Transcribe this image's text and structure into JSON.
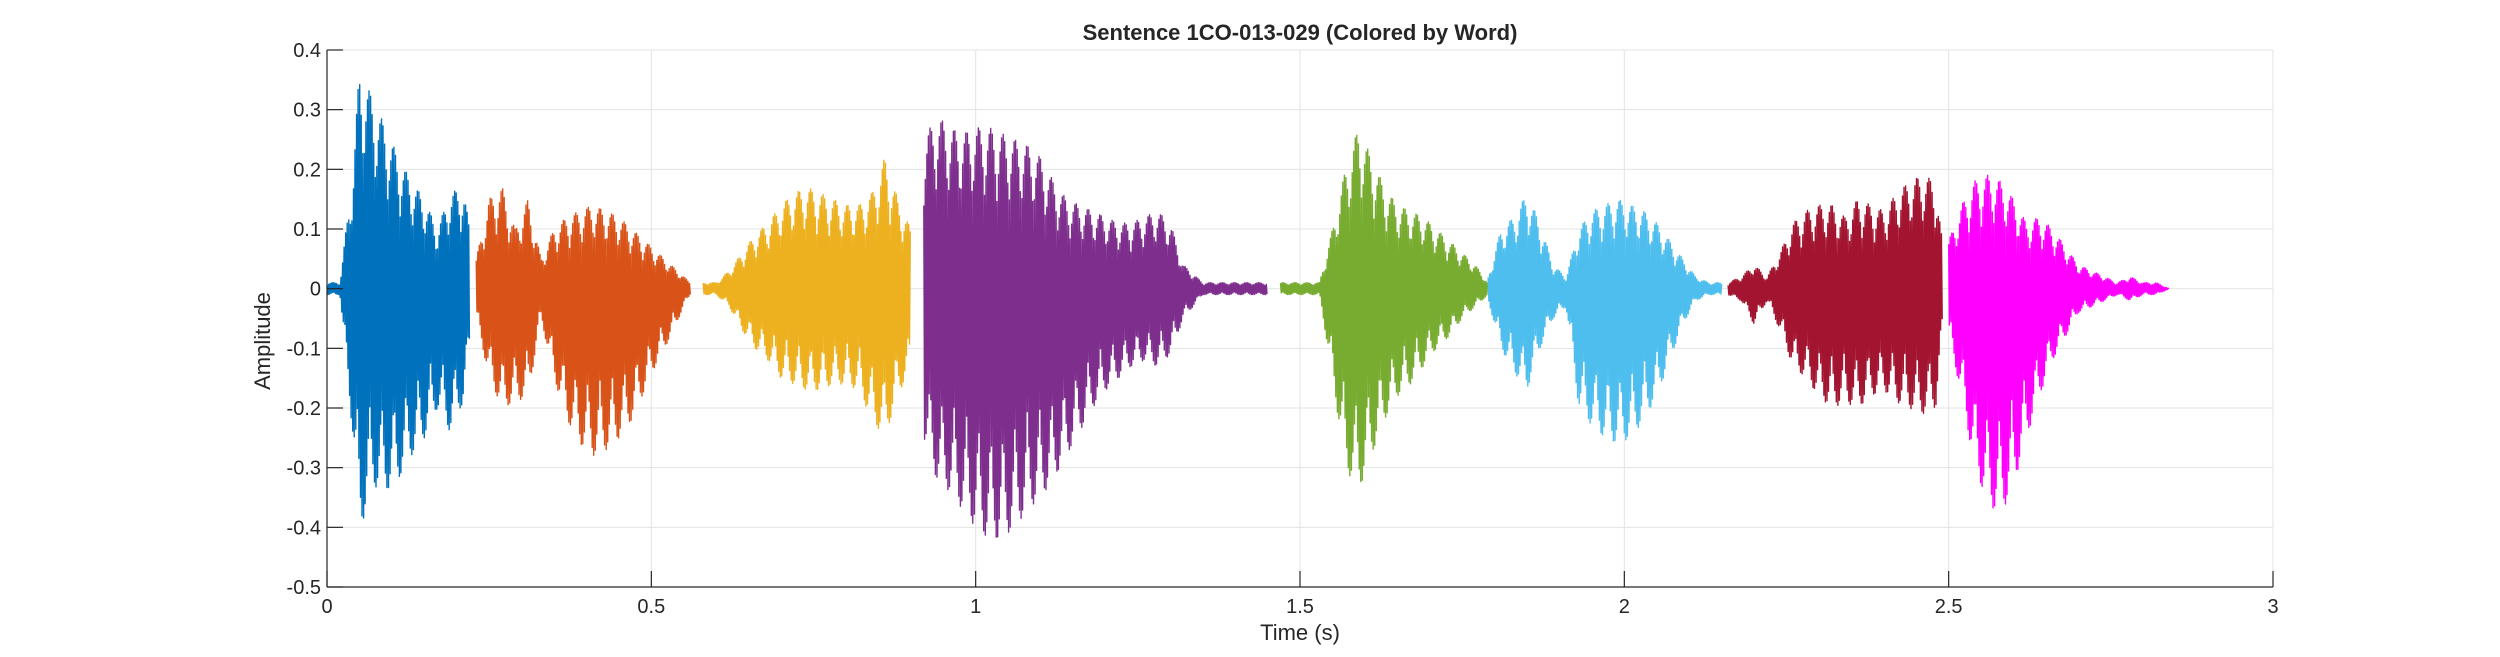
{
  "chart_data": {
    "type": "line",
    "title": "Sentence 1CO-013-029 (Colored by Word)",
    "xlabel": "Time (s)",
    "ylabel": "Amplitude",
    "xlim": [
      0,
      3
    ],
    "ylim": [
      -0.5,
      0.4
    ],
    "grid": true,
    "x_ticks": [
      0,
      0.5,
      1,
      1.5,
      2,
      2.5,
      3
    ],
    "x_tick_labels": [
      "0",
      "0.5",
      "1",
      "1.5",
      "2",
      "2.5",
      "3"
    ],
    "y_ticks": [
      0.4,
      0.3,
      0.2,
      0.1,
      0,
      -0.1,
      -0.2,
      -0.3,
      -0.4,
      -0.5
    ],
    "y_tick_labels": [
      "0.4",
      "0.3",
      "0.2",
      "0.1",
      "0",
      "-0.1",
      "-0.2",
      "-0.3",
      "-0.4",
      "-0.5"
    ],
    "series": [
      {
        "color": "#0072BD",
        "x": [
          0.0,
          0.02,
          0.04,
          0.05,
          0.07,
          0.09,
          0.11,
          0.13,
          0.15,
          0.17,
          0.19,
          0.21,
          0.22
        ],
        "upper": [
          0.01,
          0.01,
          0.2,
          0.37,
          0.32,
          0.27,
          0.22,
          0.18,
          0.15,
          0.1,
          0.16,
          0.17,
          0.1
        ],
        "lower": [
          -0.01,
          -0.01,
          -0.25,
          -0.41,
          -0.33,
          -0.34,
          -0.32,
          -0.28,
          -0.25,
          -0.2,
          -0.24,
          -0.19,
          -0.1
        ]
      },
      {
        "color": "#D95319",
        "x": [
          0.23,
          0.25,
          0.27,
          0.29,
          0.31,
          0.33,
          0.35,
          0.37,
          0.39,
          0.41,
          0.43,
          0.45,
          0.47,
          0.49,
          0.51,
          0.53,
          0.55,
          0.56
        ],
        "upper": [
          0.05,
          0.15,
          0.17,
          0.1,
          0.15,
          0.05,
          0.1,
          0.12,
          0.13,
          0.14,
          0.13,
          0.12,
          0.1,
          0.08,
          0.06,
          0.04,
          0.02,
          0.01
        ],
        "lower": [
          -0.05,
          -0.15,
          -0.2,
          -0.19,
          -0.18,
          -0.05,
          -0.15,
          -0.22,
          -0.26,
          -0.28,
          -0.27,
          -0.25,
          -0.22,
          -0.17,
          -0.12,
          -0.08,
          -0.03,
          -0.01
        ]
      },
      {
        "color": "#EDB120",
        "x": [
          0.58,
          0.6,
          0.62,
          0.64,
          0.66,
          0.68,
          0.7,
          0.72,
          0.74,
          0.76,
          0.78,
          0.8,
          0.82,
          0.84,
          0.86,
          0.88,
          0.9
        ],
        "upper": [
          0.01,
          0.01,
          0.03,
          0.06,
          0.09,
          0.11,
          0.14,
          0.16,
          0.17,
          0.16,
          0.15,
          0.14,
          0.14,
          0.16,
          0.22,
          0.15,
          0.1
        ],
        "lower": [
          -0.01,
          -0.01,
          -0.03,
          -0.07,
          -0.1,
          -0.12,
          -0.15,
          -0.16,
          -0.17,
          -0.17,
          -0.16,
          -0.16,
          -0.17,
          -0.22,
          -0.25,
          -0.18,
          -0.13
        ]
      },
      {
        "color": "#7E2F8E",
        "x": [
          0.92,
          0.94,
          0.96,
          0.98,
          1.0,
          1.02,
          1.04,
          1.06,
          1.08,
          1.1,
          1.12,
          1.14,
          1.16,
          1.18,
          1.2,
          1.22,
          1.24,
          1.26,
          1.28,
          1.3,
          1.32,
          1.35,
          1.4,
          1.45
        ],
        "upper": [
          0.25,
          0.29,
          0.27,
          0.26,
          0.27,
          0.27,
          0.26,
          0.25,
          0.24,
          0.22,
          0.18,
          0.15,
          0.14,
          0.13,
          0.12,
          0.11,
          0.11,
          0.12,
          0.13,
          0.11,
          0.04,
          0.01,
          0.01,
          0.01
        ],
        "lower": [
          -0.25,
          -0.32,
          -0.34,
          -0.37,
          -0.4,
          -0.42,
          -0.42,
          -0.4,
          -0.37,
          -0.35,
          -0.32,
          -0.28,
          -0.24,
          -0.2,
          -0.17,
          -0.15,
          -0.13,
          -0.12,
          -0.13,
          -0.11,
          -0.05,
          -0.01,
          -0.01,
          -0.01
        ]
      },
      {
        "color": "#77AC30",
        "x": [
          1.47,
          1.5,
          1.53,
          1.55,
          1.57,
          1.59,
          1.61,
          1.63,
          1.65,
          1.67,
          1.69,
          1.71,
          1.73,
          1.75,
          1.77,
          1.79
        ],
        "upper": [
          0.01,
          0.01,
          0.01,
          0.1,
          0.2,
          0.27,
          0.22,
          0.17,
          0.14,
          0.13,
          0.12,
          0.1,
          0.08,
          0.06,
          0.04,
          0.01
        ],
        "lower": [
          -0.01,
          -0.01,
          -0.01,
          -0.15,
          -0.3,
          -0.34,
          -0.28,
          -0.22,
          -0.18,
          -0.16,
          -0.13,
          -0.1,
          -0.08,
          -0.05,
          -0.03,
          -0.01
        ]
      },
      {
        "color": "#4DBEEE",
        "x": [
          1.79,
          1.81,
          1.83,
          1.85,
          1.87,
          1.89,
          1.91,
          1.93,
          1.95,
          1.97,
          1.99,
          2.01,
          2.03,
          2.05,
          2.07,
          2.09,
          2.11,
          2.13,
          2.15
        ],
        "upper": [
          0.02,
          0.1,
          0.12,
          0.16,
          0.11,
          0.04,
          0.02,
          0.1,
          0.13,
          0.14,
          0.15,
          0.14,
          0.13,
          0.11,
          0.08,
          0.05,
          0.02,
          0.01,
          0.01
        ],
        "lower": [
          -0.02,
          -0.1,
          -0.14,
          -0.17,
          -0.1,
          -0.05,
          -0.03,
          -0.2,
          -0.23,
          -0.25,
          -0.26,
          -0.25,
          -0.22,
          -0.18,
          -0.12,
          -0.06,
          -0.02,
          -0.01,
          -0.01
        ]
      },
      {
        "color": "#A2142F",
        "x": [
          2.16,
          2.18,
          2.2,
          2.22,
          2.24,
          2.26,
          2.28,
          2.3,
          2.32,
          2.34,
          2.36,
          2.38,
          2.4,
          2.42,
          2.44,
          2.46,
          2.48,
          2.49
        ],
        "upper": [
          0.01,
          0.02,
          0.04,
          0.02,
          0.06,
          0.11,
          0.13,
          0.14,
          0.14,
          0.12,
          0.15,
          0.14,
          0.13,
          0.16,
          0.18,
          0.19,
          0.18,
          0.08
        ],
        "lower": [
          -0.01,
          -0.02,
          -0.06,
          -0.02,
          -0.07,
          -0.13,
          -0.15,
          -0.18,
          -0.2,
          -0.19,
          -0.2,
          -0.18,
          -0.17,
          -0.19,
          -0.2,
          -0.21,
          -0.2,
          -0.08
        ]
      },
      {
        "color": "#FF00FF",
        "x": [
          2.5,
          2.52,
          2.54,
          2.56,
          2.58,
          2.6,
          2.62,
          2.64,
          2.66,
          2.68,
          2.7,
          2.72,
          2.74,
          2.76,
          2.78,
          2.8,
          2.82,
          2.84
        ],
        "upper": [
          0.08,
          0.14,
          0.18,
          0.19,
          0.18,
          0.15,
          0.11,
          0.12,
          0.1,
          0.07,
          0.04,
          0.03,
          0.02,
          0.01,
          0.02,
          0.01,
          0.01,
          0.0
        ],
        "lower": [
          -0.08,
          -0.18,
          -0.3,
          -0.36,
          -0.38,
          -0.33,
          -0.25,
          -0.18,
          -0.12,
          -0.08,
          -0.04,
          -0.03,
          -0.02,
          -0.01,
          -0.02,
          -0.01,
          -0.01,
          0.0
        ]
      }
    ]
  }
}
